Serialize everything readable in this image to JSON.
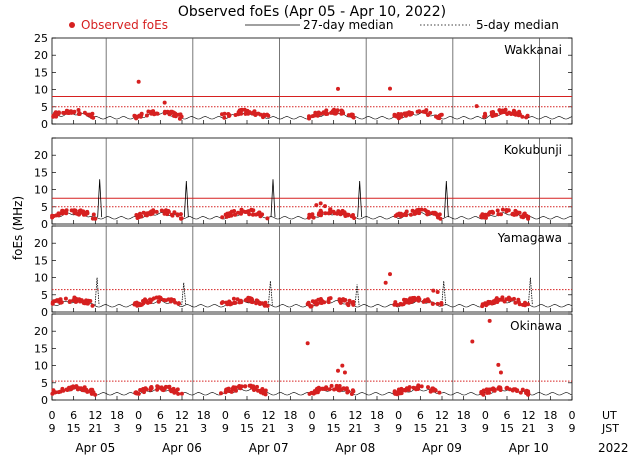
{
  "chart_data": {
    "type": "scatter",
    "title": "Observed foEs (Apr 05 - Apr 10, 2022)",
    "legend": {
      "observed": "Observed foEs",
      "median27": "27-day median",
      "median5": "5-day median"
    },
    "ylabel": "foEs (MHz)",
    "ylim": [
      0,
      25
    ],
    "yticks": [
      0,
      5,
      10,
      15,
      20,
      25
    ],
    "year": "2022",
    "ut_label": "UT",
    "jst_label": "JST",
    "ut_ticks": [
      "0",
      "6",
      "12",
      "18",
      "0",
      "6",
      "12",
      "18",
      "0",
      "6",
      "12",
      "18",
      "0",
      "6",
      "12",
      "18",
      "0",
      "6",
      "12",
      "18",
      "0",
      "6",
      "12",
      "18",
      "0"
    ],
    "jst_ticks": [
      "9",
      "15",
      "21",
      "3",
      "9",
      "15",
      "21",
      "3",
      "9",
      "15",
      "21",
      "3",
      "9",
      "15",
      "21",
      "3",
      "9",
      "15",
      "21",
      "3",
      "9",
      "15",
      "21",
      "3",
      "9"
    ],
    "days": [
      "Apr 05",
      "Apr 06",
      "Apr 07",
      "Apr 08",
      "Apr 09",
      "Apr 10"
    ],
    "colors": {
      "observed": "#d62020",
      "median": "#000000",
      "lines": "#d62020"
    },
    "stations": [
      {
        "name": "Wakkanai",
        "ref_lines": [
          8,
          5
        ],
        "outliers": [
          [
            1.0,
            12.3
          ],
          [
            1.3,
            6.2
          ],
          [
            3.3,
            10.2
          ],
          [
            3.9,
            10.3
          ],
          [
            4.9,
            5.2
          ]
        ],
        "spikes": []
      },
      {
        "name": "Kokubunji",
        "ref_lines": [
          7.5,
          5
        ],
        "outliers": [
          [
            3.05,
            5.5
          ],
          [
            3.1,
            6
          ],
          [
            3.15,
            5.2
          ]
        ],
        "spikes": [
          [
            0.55,
            13
          ],
          [
            1.55,
            12.5
          ],
          [
            2.55,
            13
          ],
          [
            3.55,
            12.5
          ],
          [
            4.55,
            12.5
          ]
        ]
      },
      {
        "name": "Yamagawa",
        "ref_lines": [
          6.5
        ],
        "outliers": [
          [
            3.9,
            11
          ],
          [
            3.85,
            8.5
          ],
          [
            4.4,
            6.2
          ],
          [
            4.45,
            5.8
          ]
        ],
        "spikes": [
          [
            0.52,
            10
          ],
          [
            1.52,
            8.5
          ],
          [
            2.52,
            9
          ],
          [
            3.52,
            8
          ],
          [
            4.52,
            9
          ],
          [
            5.52,
            10
          ]
        ]
      },
      {
        "name": "Okinawa",
        "ref_lines": [
          5.5
        ],
        "outliers": [
          [
            2.95,
            16.5
          ],
          [
            3.35,
            10
          ],
          [
            3.3,
            8.5
          ],
          [
            3.38,
            8
          ],
          [
            4.85,
            17
          ],
          [
            5.15,
            10.2
          ],
          [
            5.18,
            8
          ],
          [
            5.05,
            23
          ]
        ],
        "spikes": []
      }
    ]
  }
}
